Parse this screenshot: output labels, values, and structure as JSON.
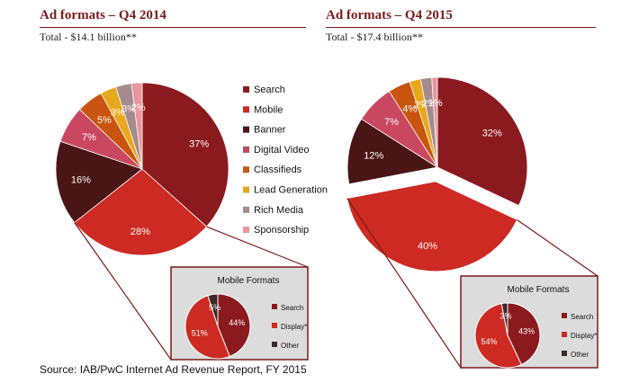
{
  "colors": {
    "Search": "#8b1a1f",
    "Mobile": "#cc2a22",
    "Banner": "#4a1515",
    "Digital Video": "#c9485f",
    "Classifieds": "#c8540f",
    "Lead Generation": "#e8a81c",
    "Rich Media": "#a58b8b",
    "Sponsorship": "#e8969c",
    "Display*": "#cc2a22",
    "Other": "#3a2a2a"
  },
  "chart_data": [
    {
      "type": "pie",
      "title": "Ad formats – Q4 2014",
      "subtitle": "Total - $14.1 billion**",
      "series": [
        {
          "labels": [
            "Search",
            "Mobile",
            "Banner",
            "Digital Video",
            "Classifieds",
            "Lead Generation",
            "Rich Media",
            "Sponsorship"
          ],
          "values": [
            37,
            28,
            16,
            7,
            5,
            3,
            3,
            2
          ],
          "value_labels": [
            "37%",
            "28%",
            "16%",
            "7%",
            "5%",
            "3%",
            "3%",
            "2%"
          ]
        }
      ],
      "legend": {
        "position": "right",
        "entries": [
          "Search",
          "Mobile",
          "Banner",
          "Digital Video",
          "Classifieds",
          "Lead Generation",
          "Rich Media",
          "Sponsorship"
        ]
      },
      "inset": {
        "type": "pie",
        "title": "Mobile Formats",
        "series": [
          {
            "labels": [
              "Search",
              "Display*",
              "Other"
            ],
            "values": [
              44,
              51,
              5
            ],
            "value_labels": [
              "44%",
              "51%",
              "5%"
            ]
          }
        ]
      }
    },
    {
      "type": "pie",
      "title": "Ad formats – Q4 2015",
      "subtitle": "Total - $17.4 billion**",
      "series": [
        {
          "labels": [
            "Search",
            "Mobile",
            "Banner",
            "Digital Video",
            "Classifieds",
            "Lead Generation",
            "Rich Media",
            "Sponsorship"
          ],
          "values": [
            32,
            40,
            12,
            7,
            4,
            2,
            2,
            1
          ],
          "value_labels": [
            "32%",
            "40%",
            "12%",
            "7%",
            "4%",
            "2%",
            "2%",
            "1%"
          ]
        }
      ],
      "inset": {
        "type": "pie",
        "title": "Mobile Formats",
        "series": [
          {
            "labels": [
              "Search",
              "Display*",
              "Other"
            ],
            "values": [
              43,
              54,
              3
            ],
            "value_labels": [
              "43%",
              "54%",
              "3%"
            ]
          }
        ]
      }
    }
  ],
  "source": "Source: IAB/PwC Internet Ad Revenue Report, FY 2015"
}
